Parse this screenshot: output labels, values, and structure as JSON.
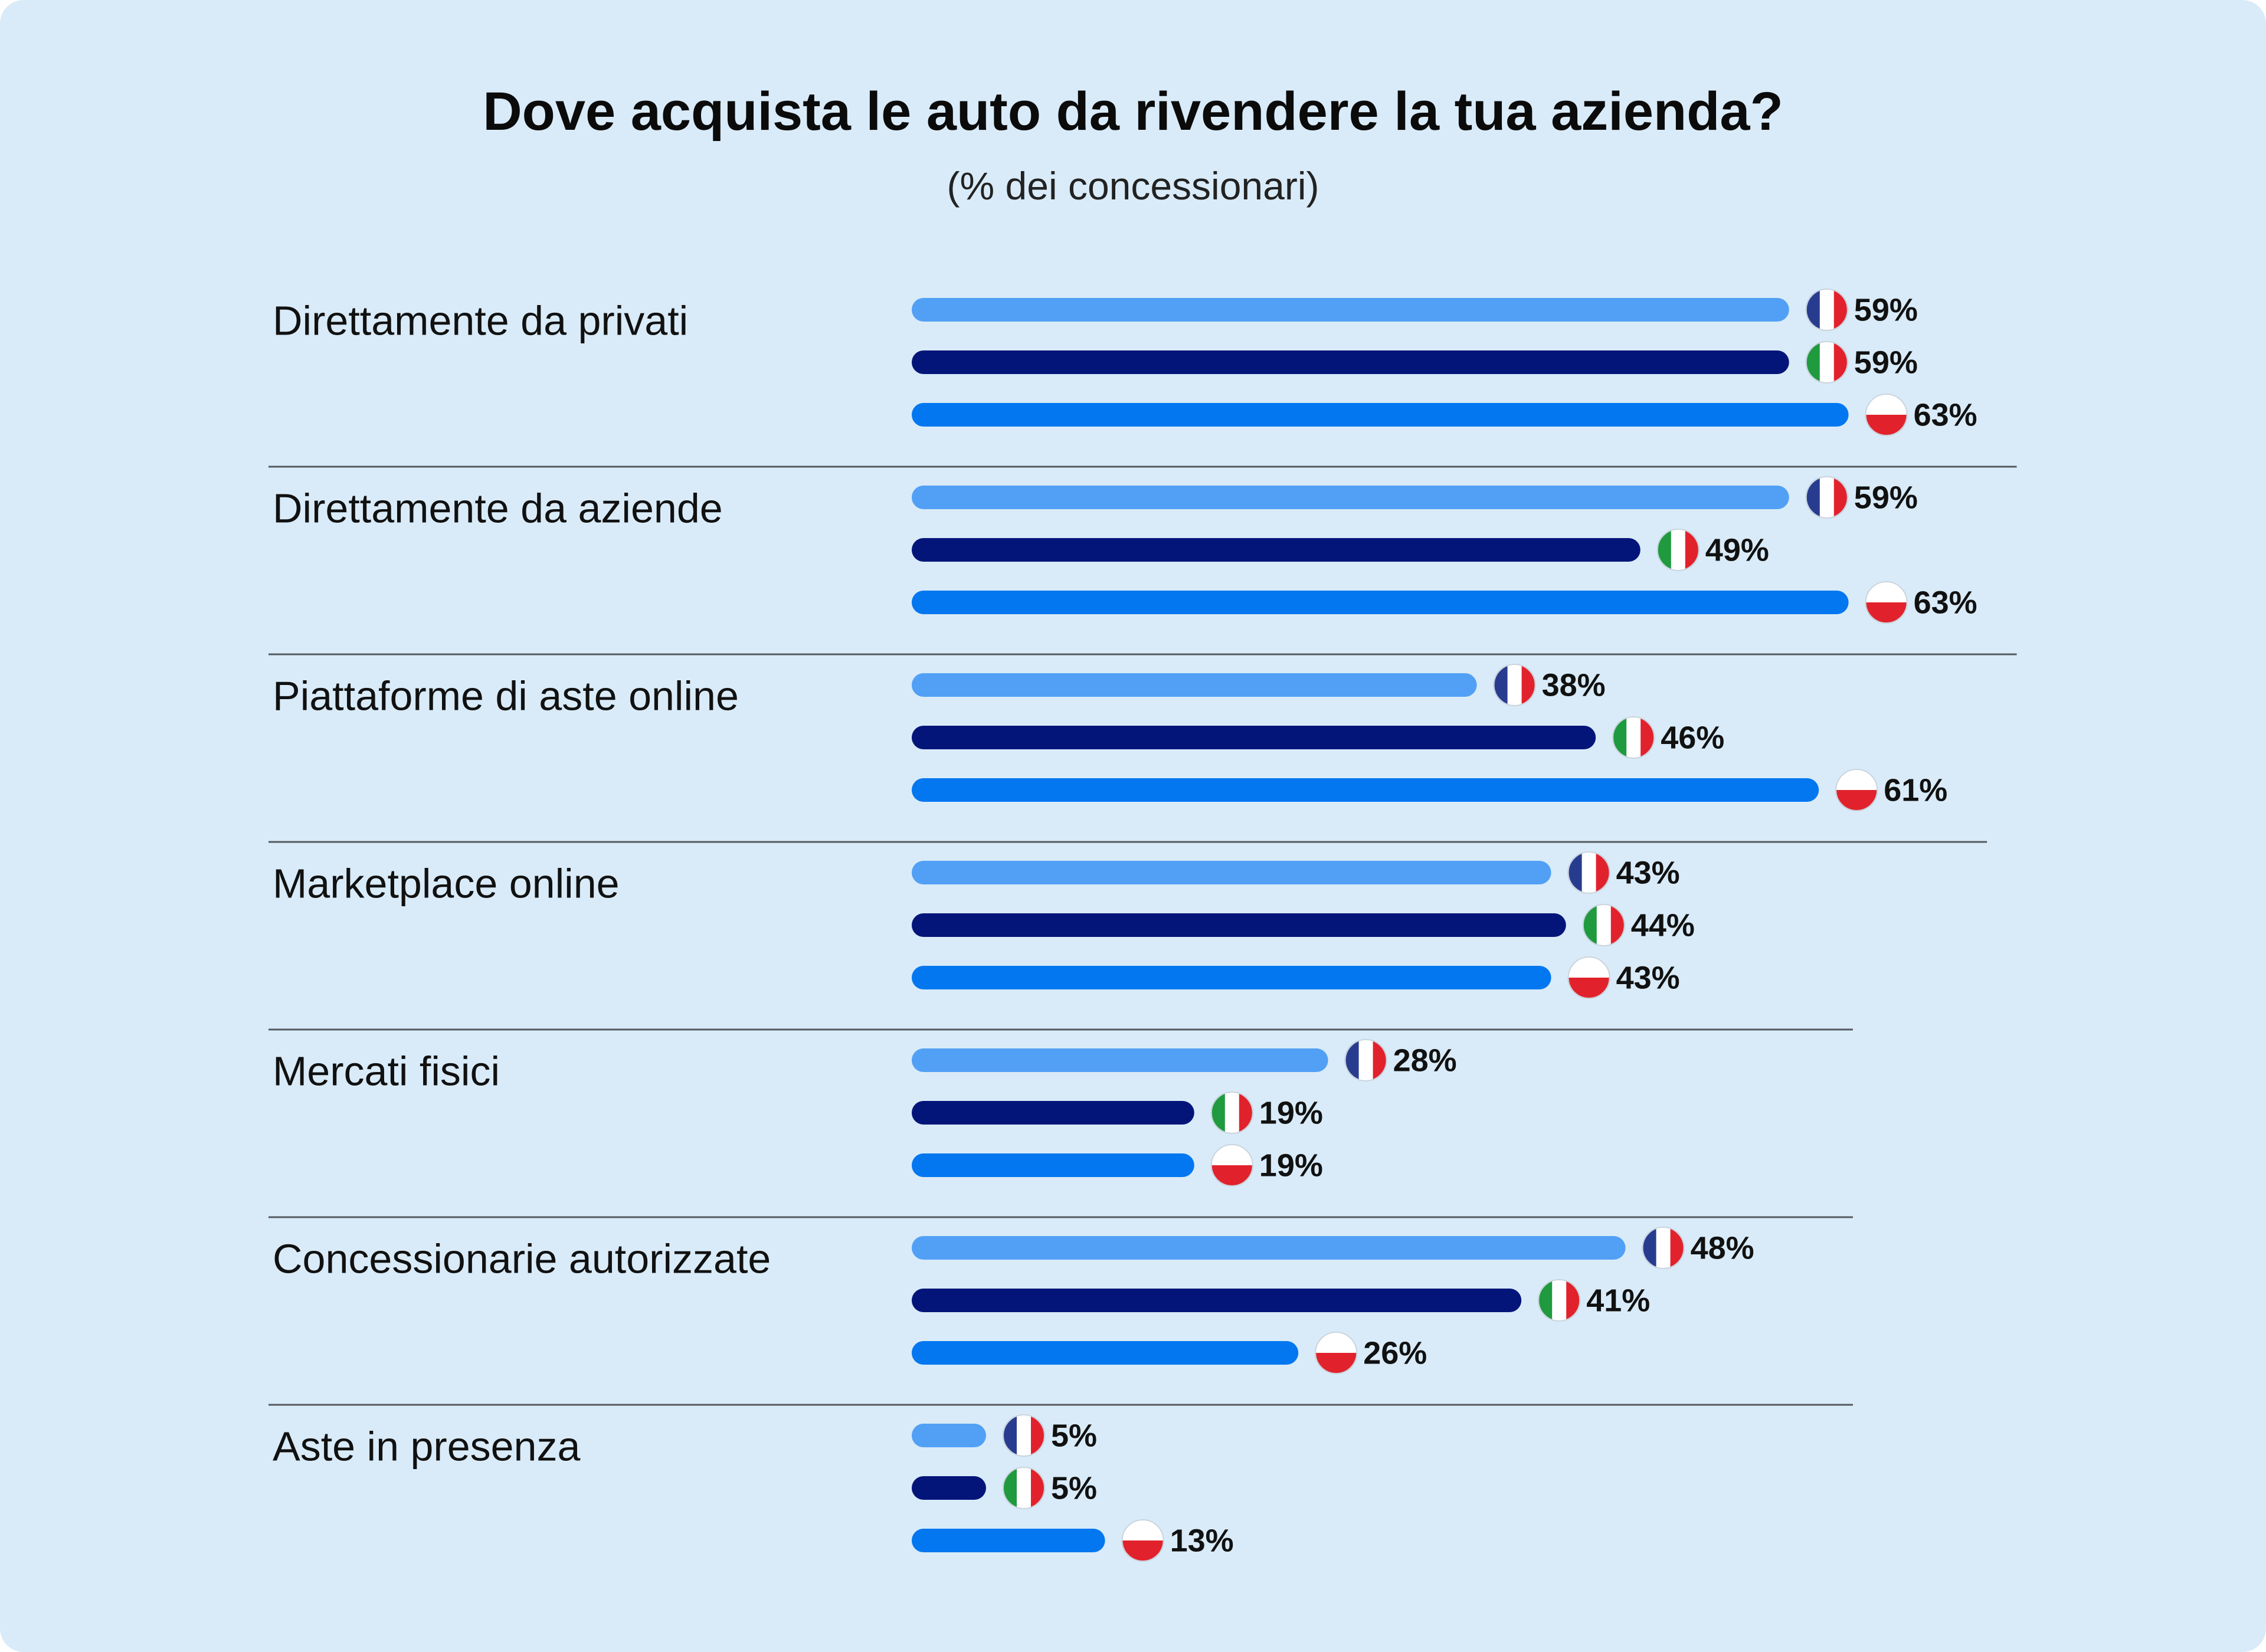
{
  "chart_data": {
    "type": "bar",
    "orientation": "horizontal",
    "title": "Dove acquista le auto da rivendere la tua azienda?",
    "subtitle": "(% dei concessionari)",
    "unit": "%",
    "xlim": [
      0,
      63
    ],
    "grid": false,
    "categories": [
      "Direttamente da privati",
      "Direttamente da aziende",
      "Piattaforme di aste online",
      "Marketplace online",
      "Mercati fisici",
      "Concessionarie autorizzate",
      "Aste in presenza"
    ],
    "series": [
      {
        "name": "France",
        "flag": "france-flag",
        "color": "#51a0f5",
        "values": [
          59,
          59,
          38,
          43,
          28,
          48,
          5
        ]
      },
      {
        "name": "Italy",
        "flag": "italy-flag",
        "color": "#04157a",
        "values": [
          59,
          49,
          46,
          44,
          19,
          41,
          5
        ]
      },
      {
        "name": "Poland",
        "flag": "poland-flag",
        "color": "#0277f0",
        "values": [
          63,
          63,
          61,
          43,
          19,
          26,
          13
        ]
      }
    ],
    "flag_colors": {
      "france": [
        "#283c8f",
        "#ffffff",
        "#e1222c"
      ],
      "italy": [
        "#1f9a3e",
        "#ffffff",
        "#e1222c"
      ],
      "poland": [
        "#ffffff",
        "#e1222c"
      ]
    }
  }
}
